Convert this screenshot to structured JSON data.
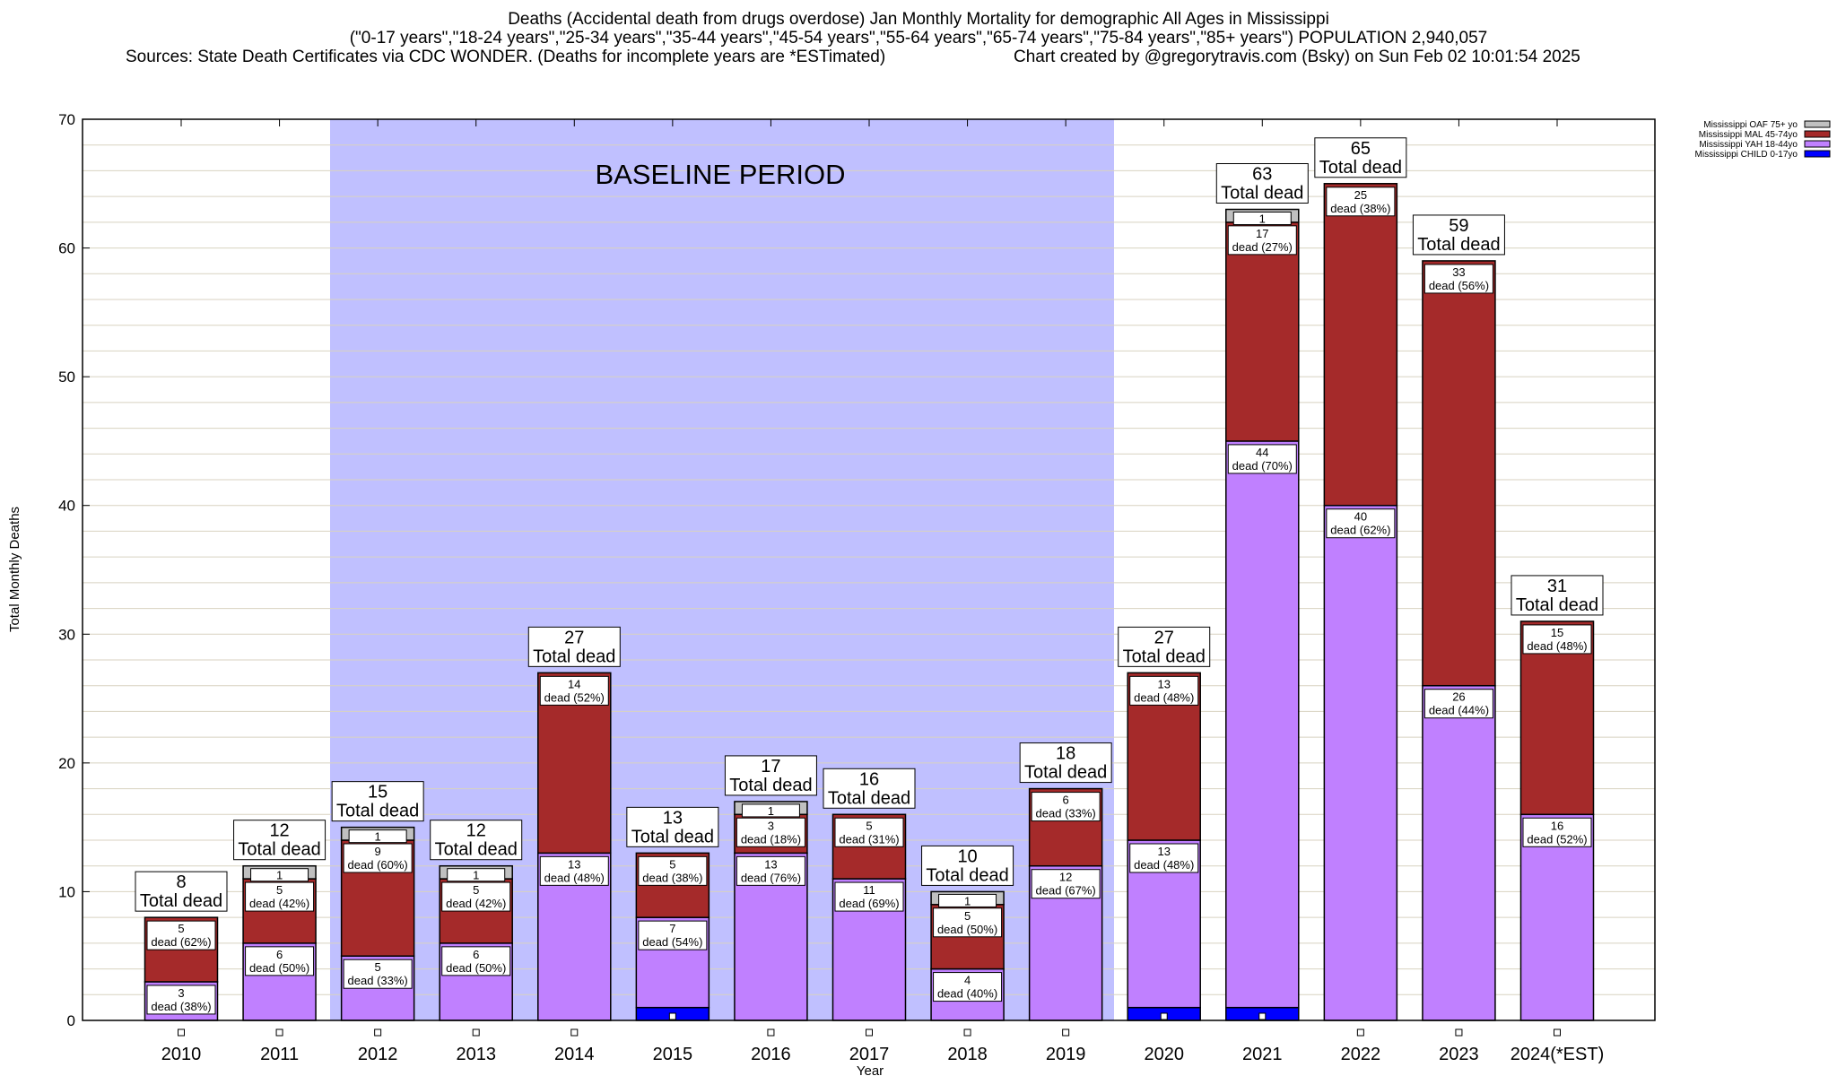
{
  "chart_data": {
    "type": "bar",
    "stacked": true,
    "title": "Deaths (Accidental death from drugs overdose) Jan Monthly Mortality for demographic All Ages in Mississippi",
    "subtitle": "(\"0-17 years\",\"18-24 years\",\"25-34 years\",\"35-44 years\",\"45-54 years\",\"55-64 years\",\"65-74 years\",\"75-84 years\",\"85+ years\") POPULATION 2,940,057",
    "sources": "Sources: State Death Certificates via CDC WONDER. (Deaths for incomplete years are *ESTimated)",
    "credit": "Chart created by @gregorytravis.com (Bsky) on Sun Feb 02 10:01:54 2025",
    "xlabel": "Year",
    "ylabel": "Total Monthly Deaths",
    "ylim": [
      0,
      70
    ],
    "yticks": [
      0,
      10,
      20,
      30,
      40,
      50,
      60,
      70
    ],
    "grid": true,
    "legend_placement": "top-right, outside",
    "annotation": {
      "text": "BASELINE PERIOD",
      "x_range": [
        "2012",
        "2019"
      ],
      "color": "#c0c0ff"
    },
    "total_label_suffix": "Total dead",
    "segment_label_word": "dead",
    "categories": [
      "2010",
      "2011",
      "2012",
      "2013",
      "2014",
      "2015",
      "2016",
      "2017",
      "2018",
      "2019",
      "2020",
      "2021",
      "2022",
      "2023",
      "2024(*EST)"
    ],
    "totals": [
      8,
      12,
      15,
      12,
      27,
      13,
      17,
      16,
      10,
      18,
      27,
      63,
      65,
      59,
      31
    ],
    "series": [
      {
        "name": "Mississippi CHILD 0-17yo",
        "color": "#0000ff",
        "values": [
          0,
          0,
          0,
          0,
          0,
          1,
          0,
          0,
          0,
          0,
          1,
          1,
          0,
          0,
          0
        ],
        "percents": []
      },
      {
        "name": "Mississippi YAH 18-44yo",
        "color": "#c080ff",
        "values": [
          3,
          6,
          5,
          6,
          13,
          7,
          13,
          11,
          4,
          12,
          13,
          44,
          40,
          26,
          16
        ],
        "percents": [
          38,
          50,
          33,
          50,
          48,
          54,
          76,
          69,
          40,
          67,
          48,
          70,
          62,
          44,
          52
        ]
      },
      {
        "name": "Mississippi MAL 45-74yo",
        "color": "#a52a2a",
        "values": [
          5,
          5,
          9,
          5,
          14,
          5,
          3,
          5,
          5,
          6,
          13,
          17,
          25,
          33,
          15
        ],
        "percents": [
          62,
          42,
          60,
          42,
          52,
          38,
          18,
          31,
          50,
          33,
          48,
          27,
          38,
          56,
          48
        ]
      },
      {
        "name": "Mississippi OAF 75+ yo",
        "color": "#c0c0c0",
        "values": [
          0,
          1,
          1,
          1,
          0,
          0,
          1,
          0,
          1,
          0,
          0,
          1,
          0,
          0,
          0
        ],
        "percents": []
      }
    ]
  }
}
